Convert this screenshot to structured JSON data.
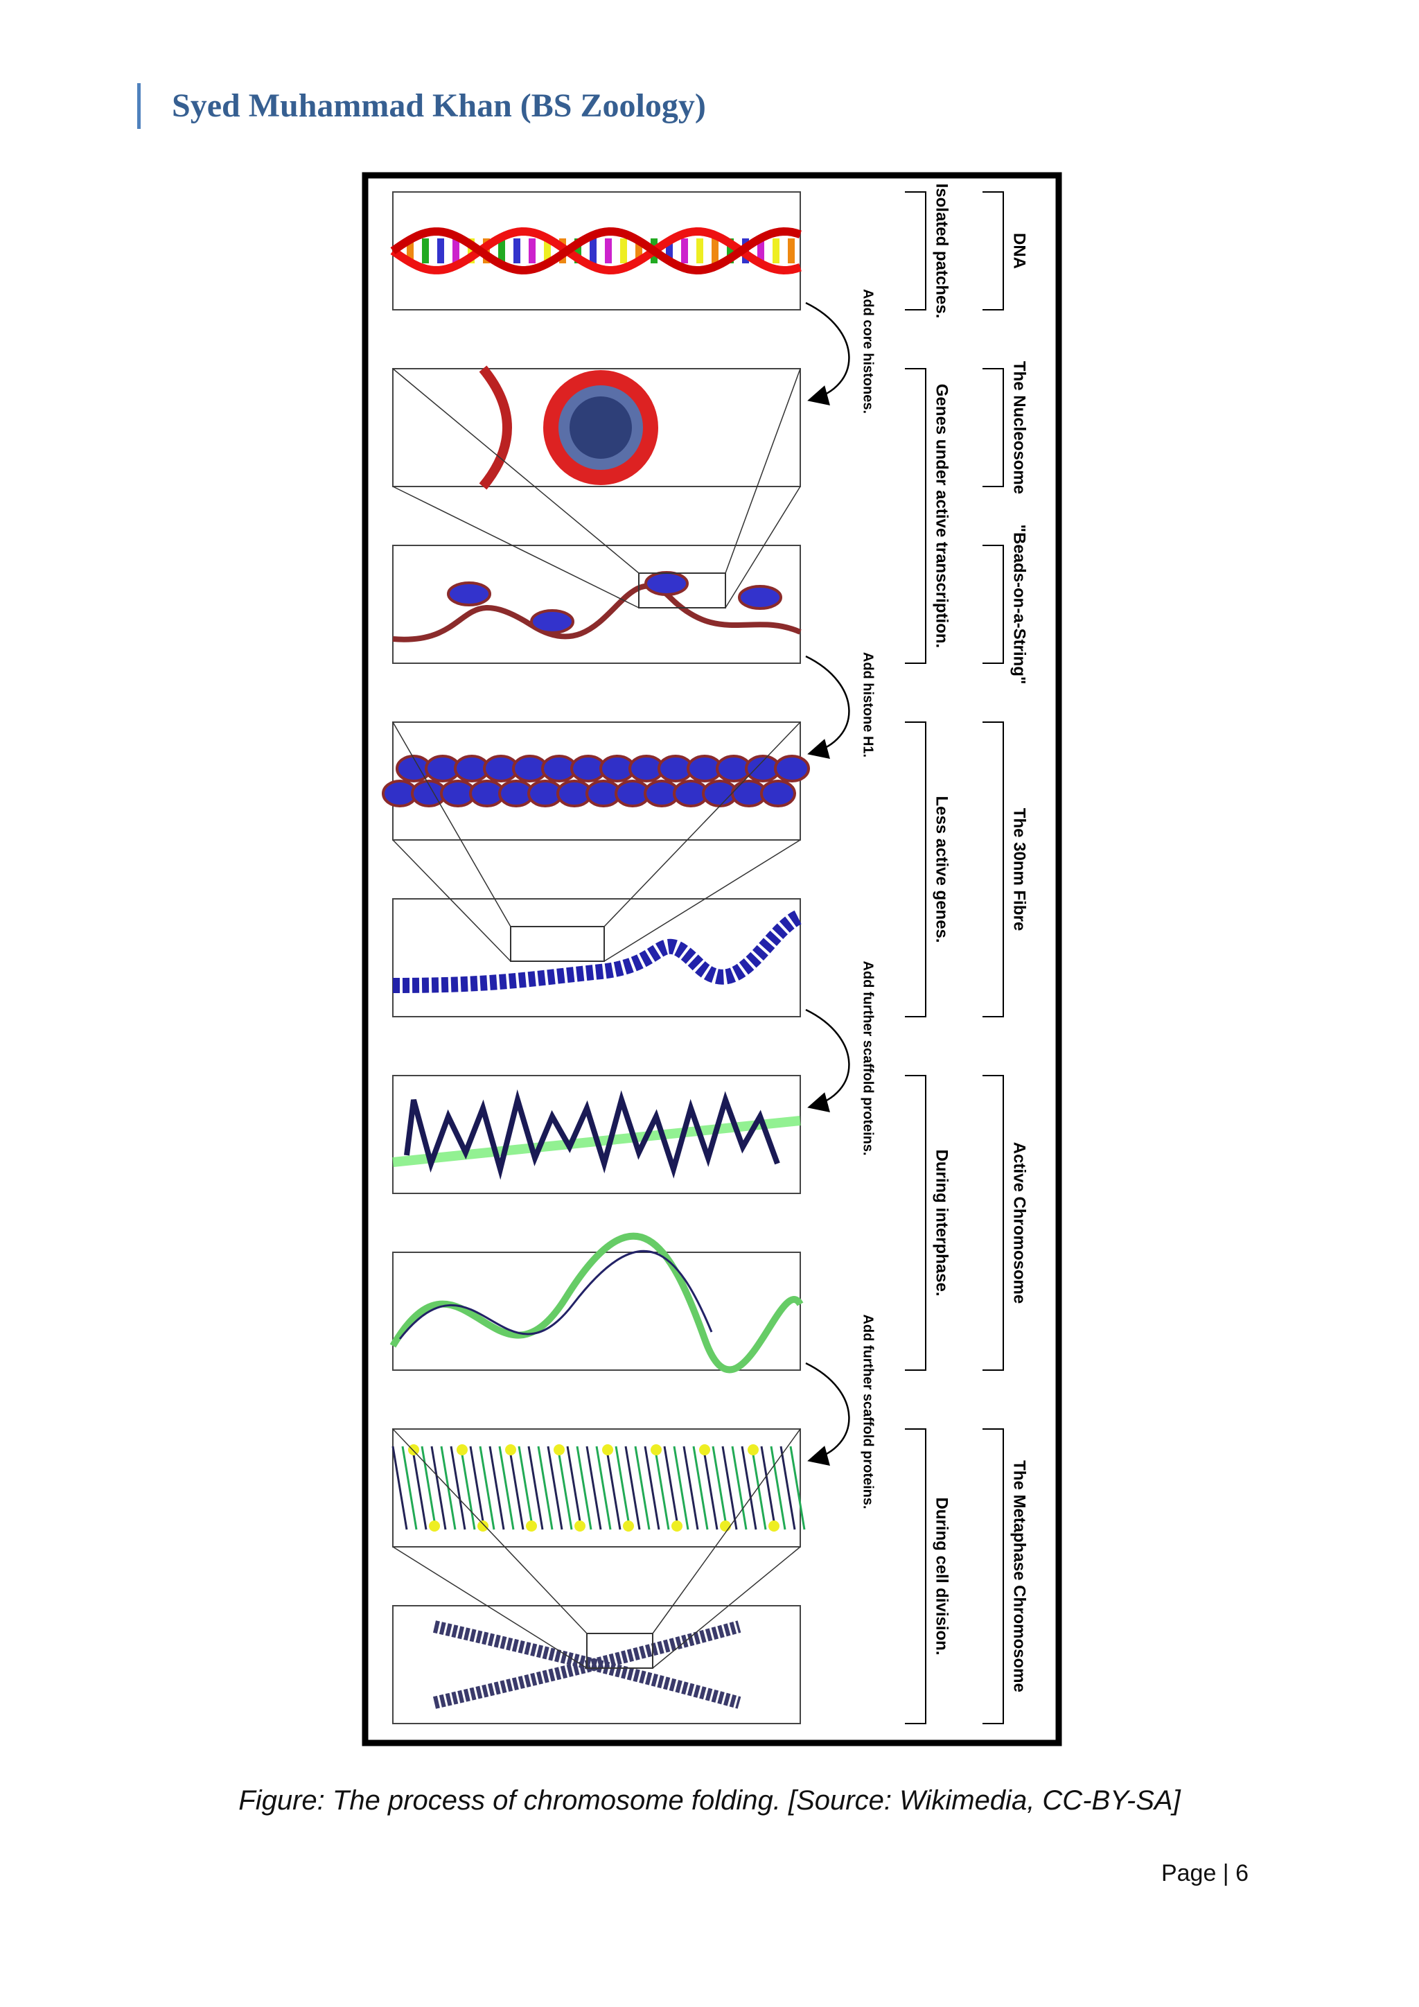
{
  "header": {
    "title": "Syed Muhammad Khan (BS Zoology)"
  },
  "figure": {
    "stages": [
      "DNA",
      "The Nucleosome",
      "\"Beads-on-a-String\"",
      "The 30nm Fibre",
      "Active Chromosome",
      "The Metaphase Chromosome"
    ],
    "phases": [
      "Isolated patches.",
      "Genes under active transcription.",
      "Less active genes.",
      "During interphase.",
      "During cell division."
    ],
    "steps": [
      "Add core histones.",
      "Add histone H1.",
      "Add further scaffold proteins.",
      "Add further scaffold proteins."
    ]
  },
  "caption": "Figure: The process of chromosome folding. [Source: Wikimedia, CC-BY-SA]",
  "footer": {
    "page": "Page | 6"
  }
}
